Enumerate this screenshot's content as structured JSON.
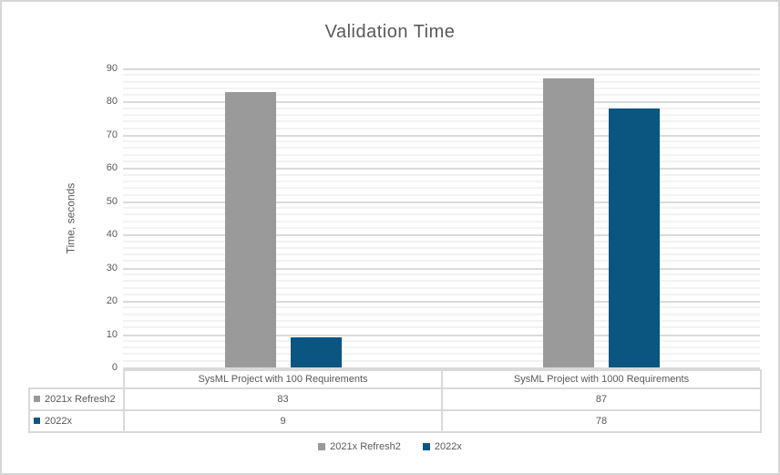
{
  "chart_data": {
    "type": "bar",
    "title": "Validation Time",
    "xlabel": "",
    "ylabel": "Time, seconds",
    "categories": [
      "SysML Project with 100 Requirements",
      "SysML Project with 1000 Requirements"
    ],
    "series": [
      {
        "name": "2021x Refresh2",
        "color": "#9A9A9A",
        "values": [
          83,
          87
        ]
      },
      {
        "name": "2022x",
        "color": "#0A5681",
        "values": [
          9,
          78
        ]
      }
    ],
    "ylim": [
      0,
      90
    ],
    "y_ticks": [
      0,
      10,
      20,
      30,
      40,
      50,
      60,
      70,
      80,
      90
    ],
    "y_major_step": 10,
    "y_minor_step": 2,
    "grid": "horizontal major and minor gridlines",
    "legend_position": "bottom",
    "show_data_table": true
  },
  "colors": {
    "title_text": "#595959",
    "axis_text": "#595959",
    "table_text": "#595959",
    "major_gridline": "#DADADA",
    "minor_gridline": "#F2F2F2",
    "table_border": "#D9D9D9",
    "frame_border": "#D6D6D6",
    "background": "#FFFFFF"
  }
}
